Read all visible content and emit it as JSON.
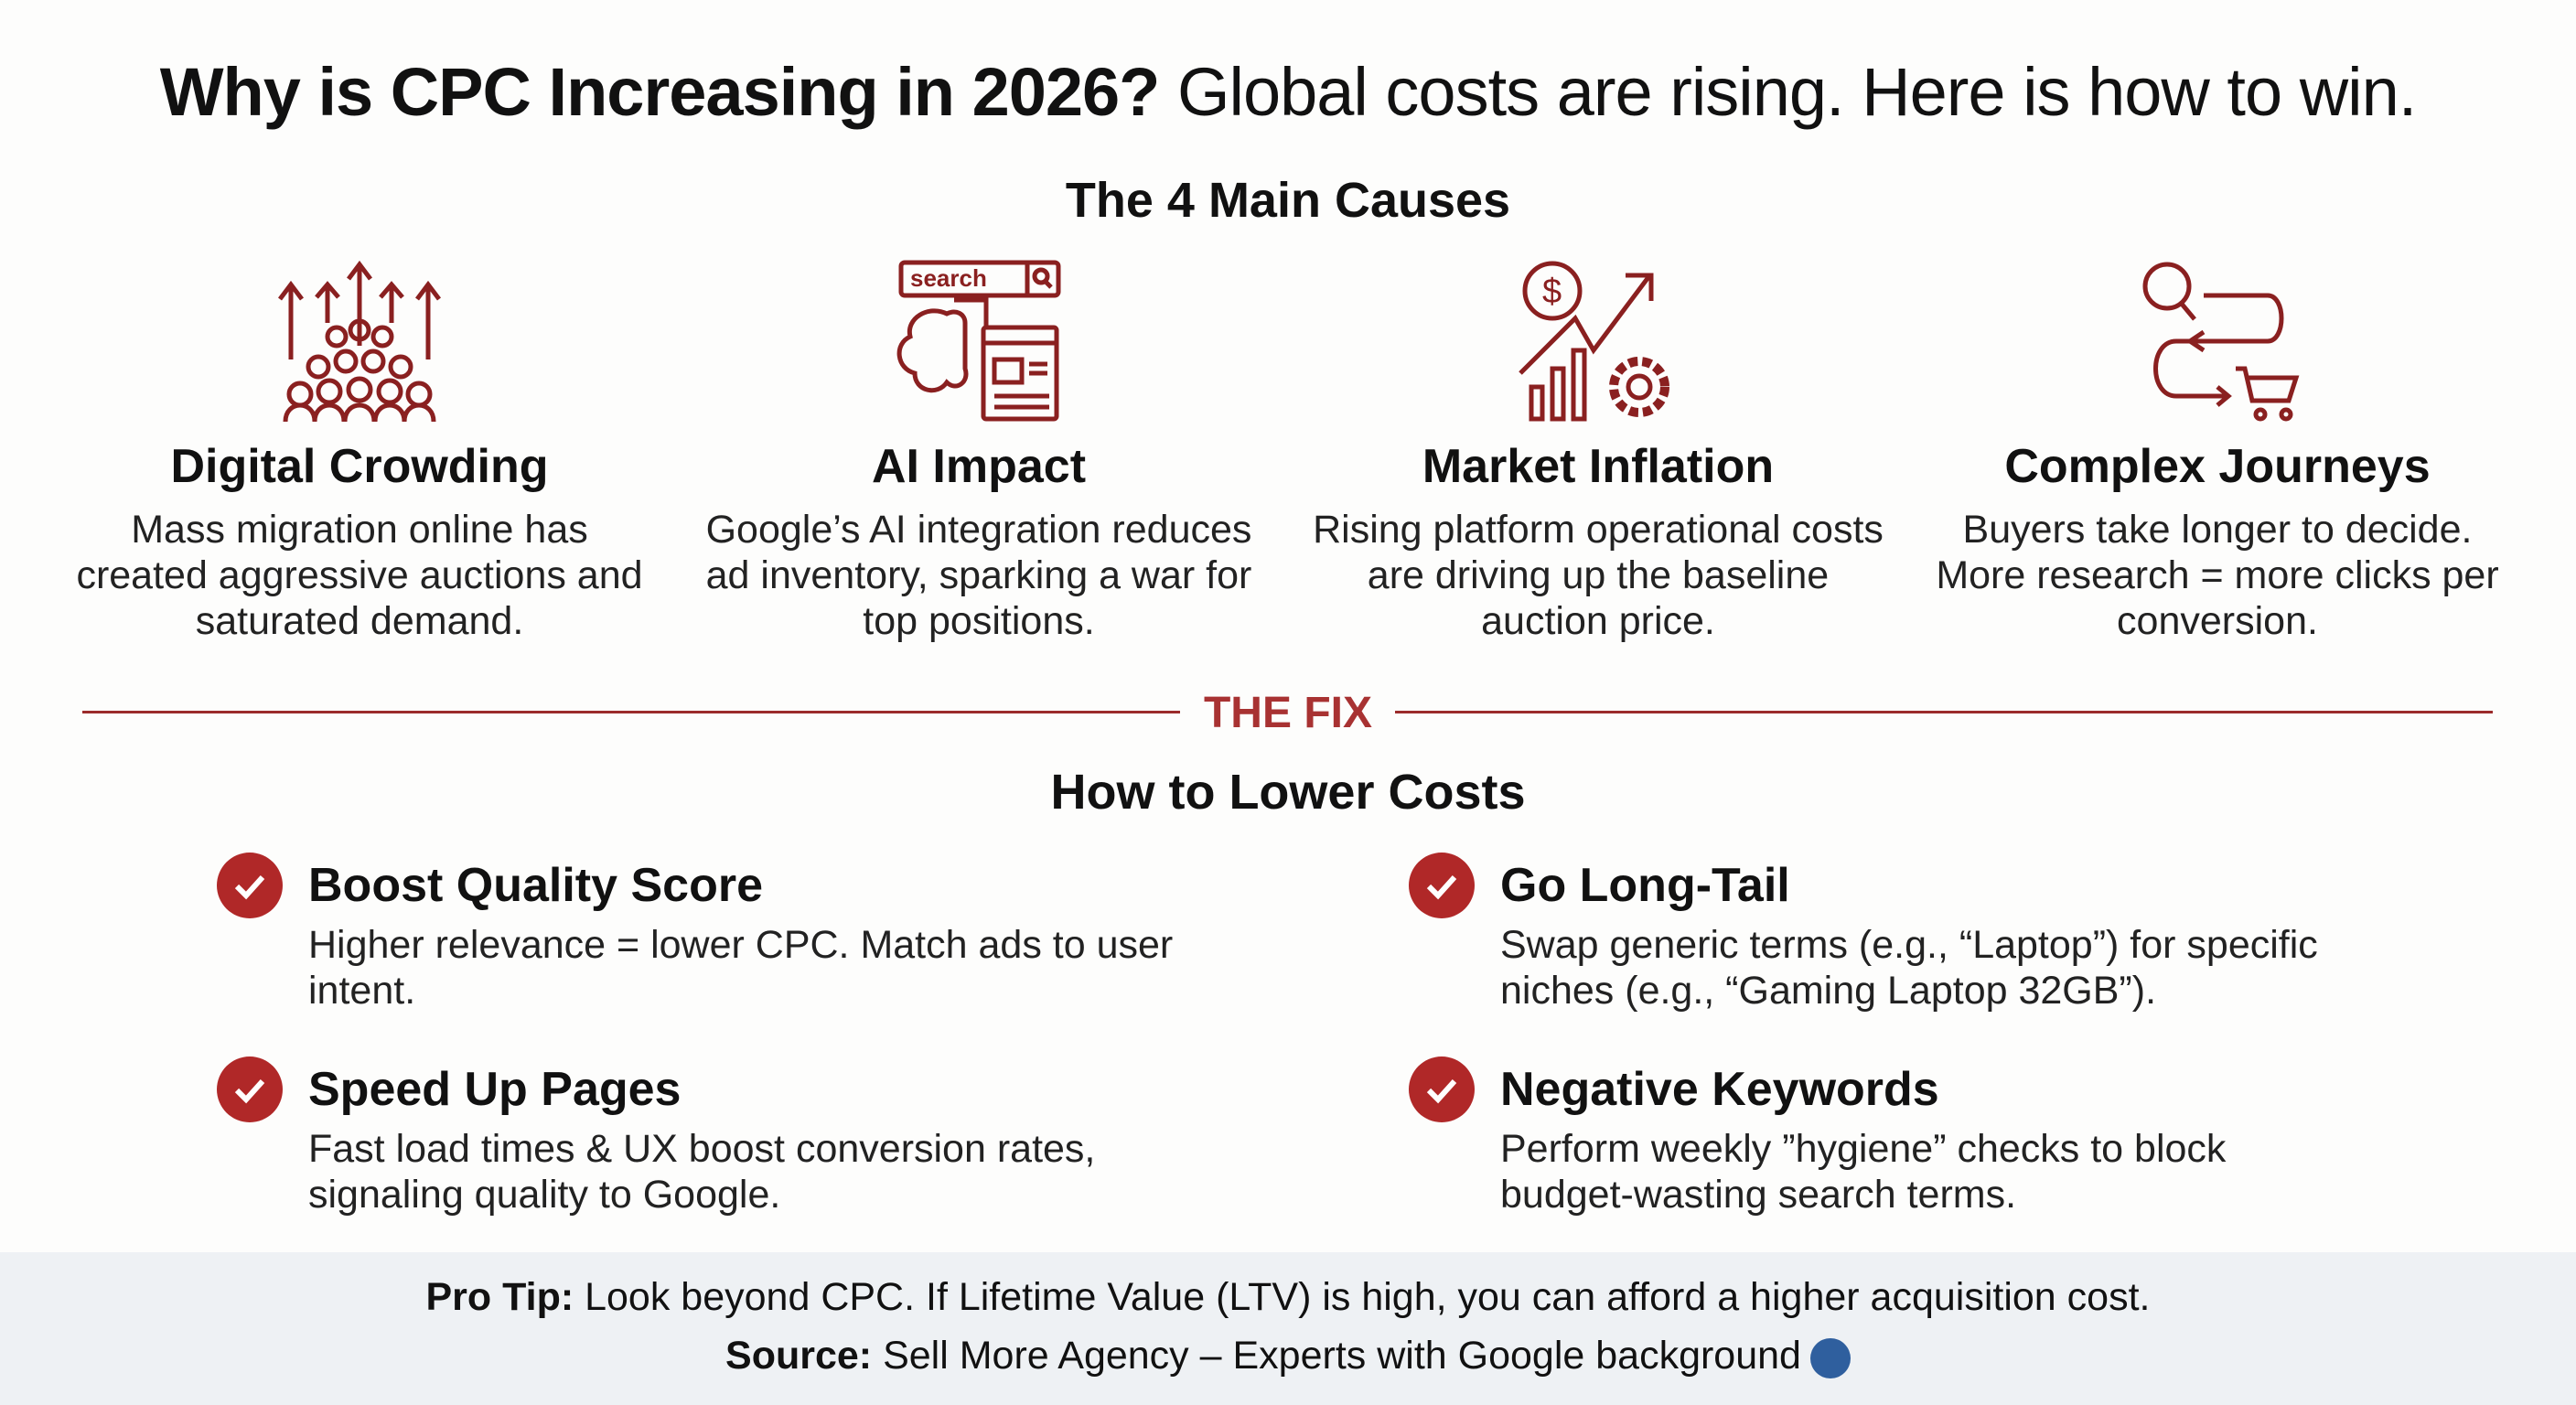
{
  "title": {
    "bold": "Why is CPC Increasing in 2026?",
    "rest": " Global costs are rising. Here is how to win."
  },
  "causes_heading": "The 4 Main Causes",
  "causes": [
    {
      "icon": "crowd-arrows-icon",
      "title": "Digital Crowding",
      "desc": "Mass migration online has created aggressive auctions and saturated demand."
    },
    {
      "icon": "search-brain-icon",
      "icon_text": "search",
      "title": "AI Impact",
      "desc": "Google’s AI integration reduces ad inventory, sparking a war for top positions."
    },
    {
      "icon": "market-growth-gear-icon",
      "title": "Market Inflation",
      "desc": "Rising platform operational costs are driving up the baseline auction price."
    },
    {
      "icon": "journey-cart-icon",
      "title": "Complex Journeys",
      "desc": "Buyers take longer to decide. More research = more clicks per conversion."
    }
  ],
  "divider_label": "THE FIX",
  "fixes_heading": "How to Lower Costs",
  "fixes": [
    {
      "title": "Boost Quality Score",
      "desc": "Higher relevance = lower CPC. Match ads to user intent."
    },
    {
      "title": "Go Long-Tail",
      "desc": "Swap generic terms (e.g., “Laptop”) for specific niches (e.g., “Gaming Laptop 32GB”)."
    },
    {
      "title": "Speed Up Pages",
      "desc": "Fast load times & UX boost conversion rates, signaling quality to Google."
    },
    {
      "title": "Negative Keywords",
      "desc": "Perform weekly ”hygiene” checks to block budget-wasting search terms."
    }
  ],
  "footer": {
    "tip_label": "Pro Tip:",
    "tip_text": " Look beyond CPC. If Lifetime Value (LTV) is high, you can afford a higher acquisition cost.",
    "source_label": "Source:",
    "source_text": " Sell More Agency – Experts with Google background"
  },
  "colors": {
    "accent": "#a83232",
    "check": "#b02828",
    "footer_bg": "#eef1f4"
  }
}
